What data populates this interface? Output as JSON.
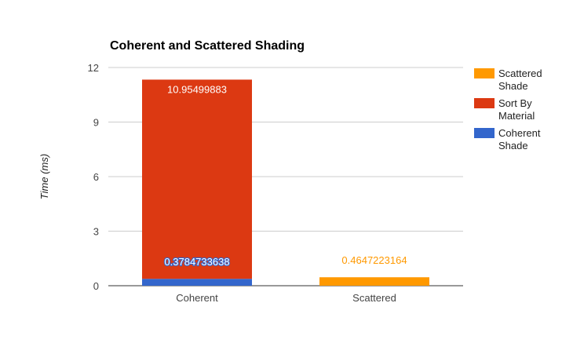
{
  "chart_data": {
    "type": "bar",
    "stacked": true,
    "title": "Coherent and Scattered Shading",
    "xlabel": "",
    "ylabel": "Time (ms)",
    "ylim": [
      0,
      12
    ],
    "yticks": [
      "0",
      "3",
      "6",
      "9",
      "12"
    ],
    "grid": true,
    "legend_position": "right",
    "categories": [
      "Coherent",
      "Scattered"
    ],
    "series": [
      {
        "name": "Coherent Shade",
        "color": "#3366cc",
        "values": [
          0.3784733638,
          0
        ],
        "labels": [
          "0.3784733638",
          ""
        ]
      },
      {
        "name": "Sort By Material",
        "color": "#dc3912",
        "values": [
          10.95499883,
          0
        ],
        "labels": [
          "10.95499883",
          ""
        ]
      },
      {
        "name": "Scattered Shade",
        "color": "#ff9900",
        "values": [
          0,
          0.4647223164
        ],
        "labels": [
          "",
          "0.4647223164"
        ]
      }
    ],
    "legend": [
      {
        "name_lines": [
          "Scattered",
          "Shade"
        ],
        "color": "#ff9900"
      },
      {
        "name_lines": [
          "Sort By",
          "Material"
        ],
        "color": "#dc3912"
      },
      {
        "name_lines": [
          "Coherent",
          "Shade"
        ],
        "color": "#3366cc"
      }
    ]
  }
}
